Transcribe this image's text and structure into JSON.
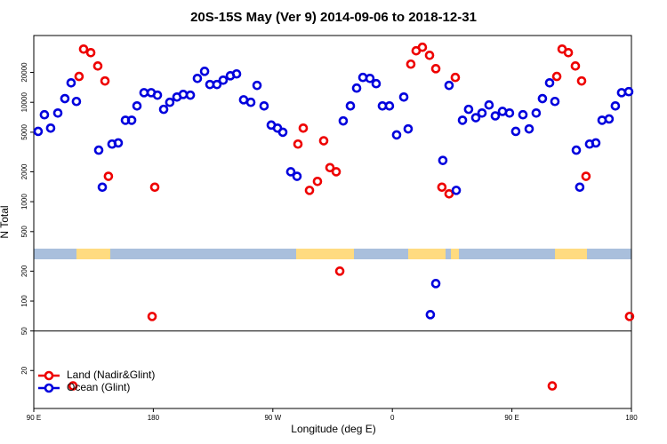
{
  "chart_data": {
    "type": "scatter",
    "title": "20S-15S May (Ver 9)   2014-09-06 to 2018-12-31",
    "xlabel": "Longitude (deg E)",
    "ylabel": "N Total",
    "log_y": true,
    "legend": "lower left",
    "hline": 50,
    "xlim": [
      90,
      540
    ],
    "xticks": [
      {
        "value": 90,
        "label": "90 E"
      },
      180,
      {
        "value": 270,
        "label": "90 W"
      },
      {
        "value": 360,
        "label": "0"
      },
      {
        "value": 450,
        "label": "90 E"
      },
      {
        "value": 540,
        "label": "180"
      }
    ],
    "ylim": [
      8.3,
      47000
    ],
    "yticks": [
      20,
      50,
      100,
      200,
      500,
      1000,
      2000,
      5000,
      10000,
      20000
    ],
    "series": [
      {
        "name": "Land (Nadir&Glint)",
        "color": "#ee0000",
        "x": [
          124.1,
          127.5,
          132.9,
          138.2,
          143.6,
          146.2,
          181.1,
          179.1,
          119.5,
          288.9,
          292.9,
          297.6,
          303.6,
          308.3,
          313,
          317.7,
          320.4,
          373.9,
          377.9,
          382.6,
          388,
          392.7,
          397.3,
          402.7,
          407.4,
          480.4,
          483.8,
          487.8,
          492.5,
          497.8,
          502.5,
          505.8,
          538.6
        ],
        "values": [
          18200,
          34300,
          31600,
          23200,
          16400,
          1800,
          1400,
          70,
          14,
          3800,
          5500,
          1300,
          1600,
          4100,
          2200,
          2000,
          200,
          24200,
          33000,
          35800,
          29700,
          21800,
          1400,
          1200,
          17800,
          14,
          18200,
          34300,
          31600,
          23200,
          16400,
          1800,
          70
        ]
      },
      {
        "name": "Ocean (Glint)",
        "color": "#0000dd",
        "x": [
          93.3,
          98,
          102.7,
          108.1,
          113.4,
          118.1,
          122.1,
          138.9,
          141.6,
          148.9,
          153.6,
          159,
          163.7,
          167.7,
          173,
          178.4,
          183.1,
          187.8,
          192.4,
          197.8,
          202.5,
          207.9,
          213.2,
          218.6,
          222.6,
          227.9,
          232.6,
          238,
          242.7,
          248,
          253.4,
          258.1,
          263.4,
          268.8,
          273.5,
          277.5,
          283.5,
          288.2,
          323,
          328.4,
          333.1,
          337.8,
          343.1,
          347.8,
          352.5,
          357.8,
          363.2,
          368.6,
          371.9,
          398,
          402.7,
          408.1,
          412.8,
          417.4,
          422.8,
          427.5,
          432.8,
          437.5,
          442.9,
          448.2,
          452.9,
          458.3,
          463,
          468.3,
          473,
          478.4,
          482.4,
          498.5,
          501.1,
          508.5,
          513.2,
          517.9,
          523.2,
          527.9,
          532.6,
          538,
          392.7,
          388.6
        ],
        "values": [
          5100,
          7500,
          5500,
          7800,
          10900,
          15700,
          10200,
          3300,
          1400,
          3800,
          3900,
          6600,
          6600,
          9200,
          12500,
          12500,
          11800,
          8500,
          10000,
          11300,
          12000,
          11800,
          17400,
          20500,
          15100,
          15100,
          16700,
          18500,
          19300,
          10600,
          10000,
          14800,
          9200,
          5900,
          5500,
          5000,
          2000,
          1800,
          6500,
          9200,
          13900,
          17800,
          17400,
          15400,
          9200,
          9200,
          4700,
          11300,
          5400,
          2600,
          14800,
          1300,
          6600,
          8500,
          7000,
          7800,
          9400,
          7300,
          8100,
          7800,
          5100,
          7500,
          5400,
          7800,
          10900,
          15700,
          10200,
          3300,
          1400,
          3800,
          3900,
          6600,
          6800,
          9200,
          12500,
          12800,
          150,
          73
        ]
      }
    ]
  }
}
